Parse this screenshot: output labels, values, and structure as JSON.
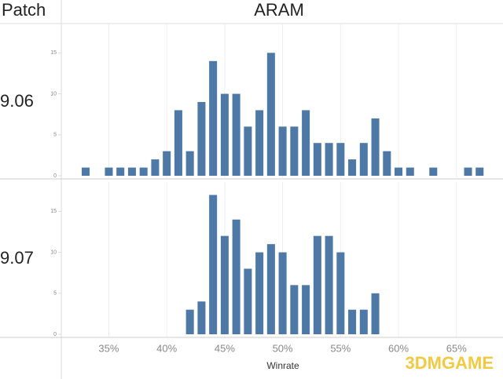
{
  "chart_data": [
    {
      "type": "bar",
      "row_header": "Patch",
      "column_header": "ARAM",
      "title": "9.06",
      "color": "#4e79a7",
      "x": [
        33,
        35,
        36,
        37,
        38,
        39,
        40,
        41,
        42,
        43,
        44,
        45,
        46,
        47,
        48,
        49,
        50,
        51,
        52,
        53,
        54,
        55,
        56,
        57,
        58,
        59,
        60,
        61,
        63,
        66,
        67
      ],
      "values": [
        1,
        1,
        1,
        1,
        1,
        2,
        3,
        8,
        3,
        9,
        14,
        10,
        10,
        6,
        8,
        15,
        6,
        6,
        8,
        4,
        4,
        4,
        2,
        4,
        7,
        3,
        1,
        1,
        1,
        1,
        1
      ],
      "xlim": [
        30.9,
        68
      ],
      "ylim": [
        0,
        18
      ],
      "yticks": [
        0,
        5,
        10,
        15
      ]
    },
    {
      "type": "bar",
      "title": "9.07",
      "color": "#4e79a7",
      "x_label": "Winrate",
      "x": [
        42,
        43,
        44,
        45,
        46,
        47,
        48,
        49,
        50,
        51,
        52,
        53,
        54,
        55,
        56,
        57,
        58
      ],
      "values": [
        3,
        4,
        17,
        12,
        14,
        8,
        10,
        11,
        10,
        6,
        6,
        12,
        12,
        10,
        3,
        3,
        5
      ],
      "xlim": [
        30.9,
        68
      ],
      "ylim": [
        0,
        18
      ],
      "yticks": [
        0,
        5,
        10,
        15
      ],
      "xticks": [
        {
          "value": 35,
          "label": "35%"
        },
        {
          "value": 40,
          "label": "40%"
        },
        {
          "value": 45,
          "label": "45%"
        },
        {
          "value": 50,
          "label": "50%"
        },
        {
          "value": 55,
          "label": "55%"
        },
        {
          "value": 60,
          "label": "60%"
        },
        {
          "value": 65,
          "label": "65%"
        }
      ]
    }
  ],
  "watermark": "3DMGAME"
}
